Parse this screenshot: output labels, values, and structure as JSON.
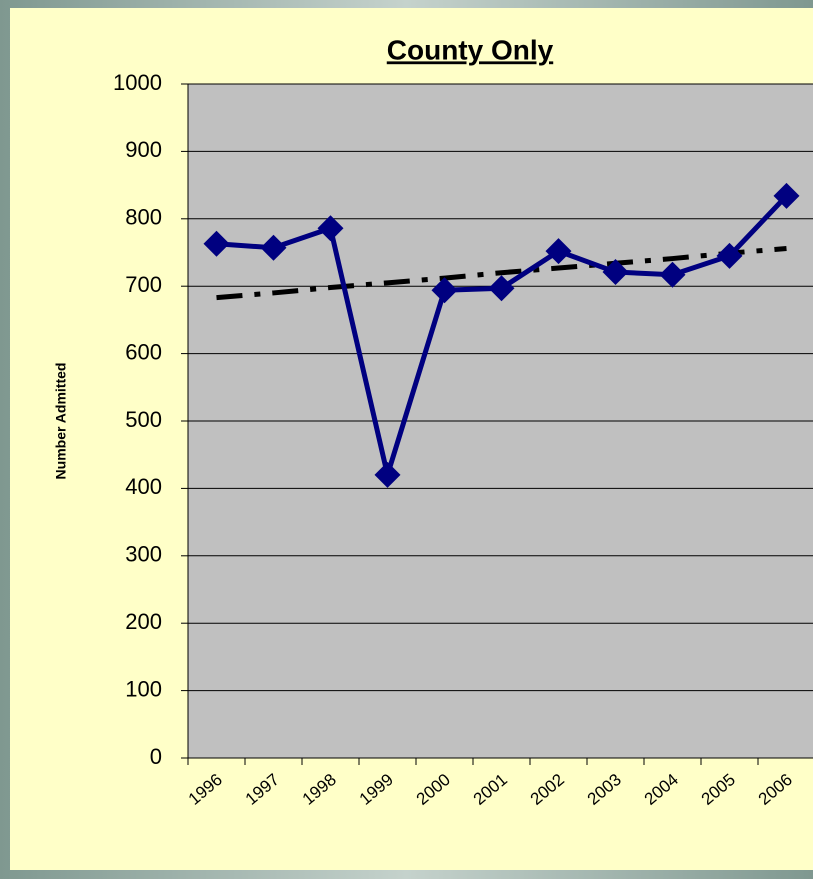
{
  "chart_data": {
    "type": "line",
    "title": "County Only",
    "y_label": "Number Admitted",
    "categories": [
      "1996",
      "1997",
      "1998",
      "1999",
      "2000",
      "2001",
      "2002",
      "2003",
      "2004",
      "2005",
      "2006"
    ],
    "series": [
      {
        "color": "#000080",
        "values": [
          763,
          757,
          786,
          420,
          694,
          697,
          752,
          721,
          717,
          745,
          834
        ]
      },
      {
        "color": "#000000",
        "dashed": true,
        "values": [
          683,
          690,
          698,
          705,
          712,
          720,
          727,
          734,
          741,
          749,
          756
        ]
      }
    ],
    "ylim": [
      0,
      1000
    ],
    "yticks": [
      0,
      100,
      200,
      300,
      400,
      500,
      600,
      700,
      800,
      900,
      1000
    ],
    "grid": true
  }
}
